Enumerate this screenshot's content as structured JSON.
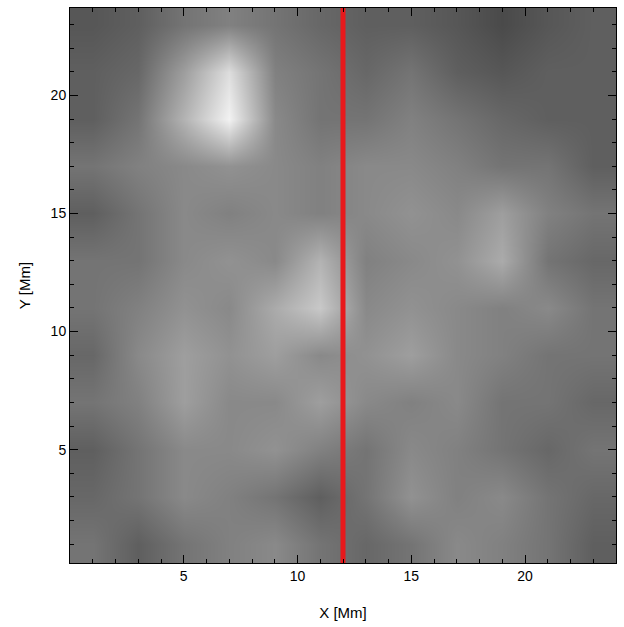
{
  "chart_data": {
    "type": "heatmap",
    "x_label": "X [Mm]",
    "y_label": "Y [Mm]",
    "x": [
      1,
      3,
      5,
      7,
      9,
      11,
      13,
      15,
      17,
      19,
      21,
      23
    ],
    "y": [
      1,
      3,
      5,
      7,
      9,
      11,
      13,
      15,
      17,
      19,
      21,
      23
    ],
    "z": [
      [
        0.55,
        0.5,
        0.55,
        0.58,
        0.6,
        0.55,
        0.52,
        0.55,
        0.6,
        0.58,
        0.55,
        0.5
      ],
      [
        0.52,
        0.55,
        0.6,
        0.58,
        0.55,
        0.5,
        0.55,
        0.62,
        0.58,
        0.6,
        0.55,
        0.52
      ],
      [
        0.5,
        0.55,
        0.6,
        0.6,
        0.62,
        0.58,
        0.55,
        0.6,
        0.58,
        0.55,
        0.52,
        0.55
      ],
      [
        0.55,
        0.58,
        0.65,
        0.6,
        0.6,
        0.65,
        0.6,
        0.58,
        0.6,
        0.55,
        0.55,
        0.52
      ],
      [
        0.52,
        0.6,
        0.65,
        0.62,
        0.65,
        0.6,
        0.62,
        0.65,
        0.6,
        0.58,
        0.55,
        0.55
      ],
      [
        0.55,
        0.58,
        0.62,
        0.6,
        0.68,
        0.75,
        0.6,
        0.62,
        0.6,
        0.58,
        0.6,
        0.55
      ],
      [
        0.55,
        0.55,
        0.6,
        0.62,
        0.6,
        0.7,
        0.58,
        0.6,
        0.62,
        0.68,
        0.55,
        0.52
      ],
      [
        0.5,
        0.55,
        0.6,
        0.58,
        0.6,
        0.58,
        0.6,
        0.62,
        0.6,
        0.65,
        0.58,
        0.55
      ],
      [
        0.55,
        0.58,
        0.6,
        0.62,
        0.6,
        0.58,
        0.6,
        0.6,
        0.58,
        0.55,
        0.55,
        0.5
      ],
      [
        0.5,
        0.55,
        0.7,
        0.85,
        0.6,
        0.55,
        0.55,
        0.58,
        0.55,
        0.52,
        0.5,
        0.5
      ],
      [
        0.5,
        0.52,
        0.65,
        0.8,
        0.58,
        0.55,
        0.52,
        0.55,
        0.5,
        0.48,
        0.5,
        0.5
      ],
      [
        0.48,
        0.5,
        0.55,
        0.58,
        0.55,
        0.52,
        0.5,
        0.5,
        0.48,
        0.45,
        0.48,
        0.5
      ]
    ],
    "vline": {
      "x": 12,
      "color": "#e8191c"
    },
    "xlim": [
      0,
      24
    ],
    "ylim": [
      0.2,
      23.7
    ],
    "xticks": [
      5,
      10,
      15,
      20
    ],
    "yticks": [
      5,
      10,
      15,
      20
    ],
    "grid": false
  }
}
